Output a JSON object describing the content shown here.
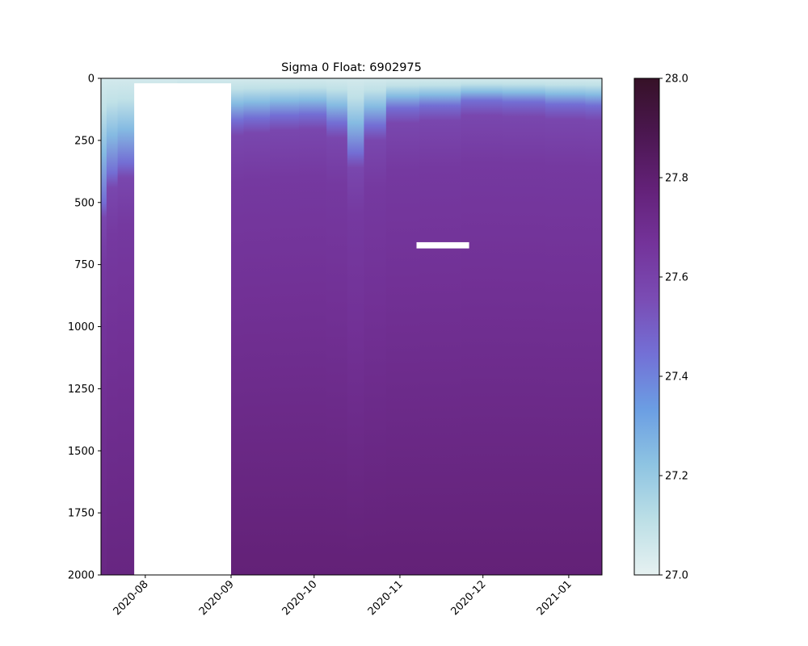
{
  "chart_data": {
    "type": "heatmap",
    "title": "Sigma 0 Float: 6902975",
    "xlabel": "",
    "ylabel": "",
    "x_axis": {
      "type": "date",
      "range": [
        "2020-07-16",
        "2021-01-13"
      ],
      "tick_labels": [
        "2020-08",
        "2020-09",
        "2020-10",
        "2020-11",
        "2020-12",
        "2021-01"
      ],
      "tick_dates": [
        "2020-08-01",
        "2020-09-01",
        "2020-10-01",
        "2020-11-01",
        "2020-12-01",
        "2021-01-01"
      ]
    },
    "y_axis": {
      "inverted": true,
      "range": [
        0,
        2000
      ],
      "ticks": [
        0,
        250,
        500,
        750,
        1000,
        1250,
        1500,
        1750,
        2000
      ]
    },
    "colorbar": {
      "range": [
        27.0,
        28.0
      ],
      "ticks": [
        27.0,
        27.2,
        27.4,
        27.6,
        27.8,
        28.0
      ],
      "tick_labels": [
        "27.0",
        "27.2",
        "27.4",
        "27.6",
        "27.8",
        "28.0"
      ],
      "colormap": "dense",
      "colors": [
        "#e6f1f1",
        "#bcdfe6",
        "#8ec4e2",
        "#6b9ee3",
        "#7370d6",
        "#7a4cb4",
        "#74339a",
        "#632178",
        "#4b1750",
        "#361127"
      ]
    },
    "profiles": [
      {
        "date": "2020-07-16",
        "mld": 500,
        "deep": 27.74
      },
      {
        "date": "2020-07-20",
        "mld": 380,
        "deep": 27.75
      },
      {
        "date": "2020-07-24",
        "mld": 340,
        "deep": 27.75
      },
      {
        "date": "2020-09-01",
        "mld": 170,
        "deep": 27.78
      },
      {
        "date": "2020-09-10",
        "mld": 160,
        "deep": 27.78
      },
      {
        "date": "2020-09-20",
        "mld": 150,
        "deep": 27.78
      },
      {
        "date": "2020-10-01",
        "mld": 145,
        "deep": 27.78
      },
      {
        "date": "2020-10-10",
        "mld": 180,
        "deep": 27.78
      },
      {
        "date": "2020-10-16",
        "mld": 300,
        "deep": 27.78
      },
      {
        "date": "2020-10-22",
        "mld": 190,
        "deep": 27.78
      },
      {
        "date": "2020-11-01",
        "mld": 120,
        "deep": 27.78
      },
      {
        "date": "2020-11-15",
        "mld": 110,
        "deep": 27.78
      },
      {
        "date": "2020-12-01",
        "mld": 90,
        "deep": 27.78
      },
      {
        "date": "2020-12-15",
        "mld": 95,
        "deep": 27.78
      },
      {
        "date": "2021-01-01",
        "mld": 105,
        "deep": 27.78
      },
      {
        "date": "2021-01-13",
        "mld": 110,
        "deep": 27.78
      }
    ],
    "data_gaps": [
      {
        "start": "2020-07-28",
        "end": "2020-09-01",
        "depth_top": 20,
        "depth_bottom": 2000
      },
      {
        "start": "2020-11-07",
        "end": "2020-11-26",
        "depth_top": 660,
        "depth_bottom": 685
      }
    ],
    "grid": false
  }
}
